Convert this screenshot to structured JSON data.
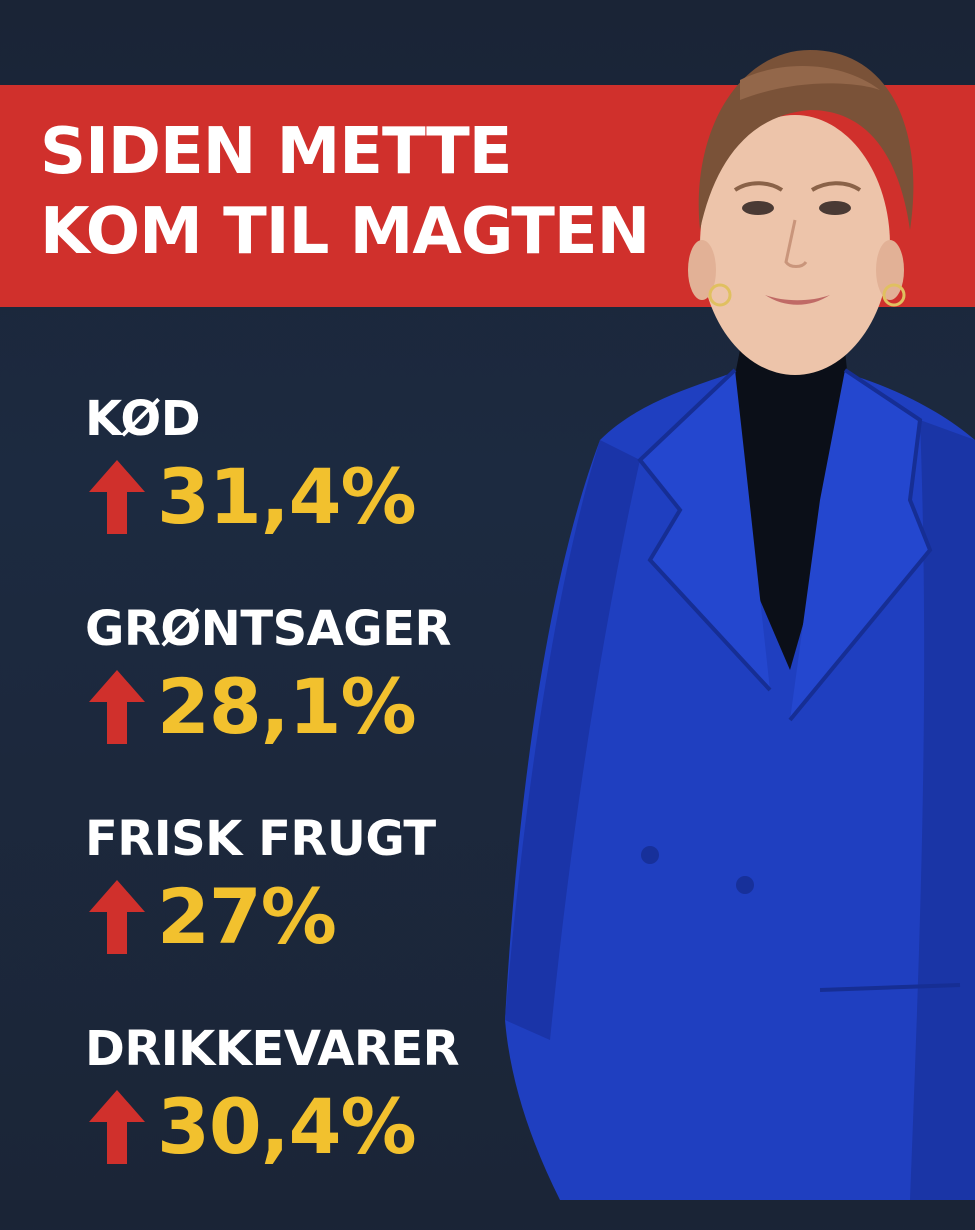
{
  "headline": {
    "line1": "SIDEN METTE",
    "line2": "KOM TIL MAGTEN"
  },
  "stats": [
    {
      "label": "KØD",
      "value": "31,4%"
    },
    {
      "label": "GRØNTSAGER",
      "value": "28,1%"
    },
    {
      "label": "FRISK FRUGT",
      "value": "27%"
    },
    {
      "label": "DRIKKEVARER",
      "value": "30,4%"
    }
  ],
  "colors": {
    "background": "#1b2639",
    "banner": "#d0302c",
    "value": "#f2c12e",
    "arrow": "#d0302c",
    "label": "#ffffff",
    "jacket": "#1f3fc0"
  },
  "icons": {
    "arrow": "up-arrow-icon",
    "portrait": "person-portrait"
  }
}
